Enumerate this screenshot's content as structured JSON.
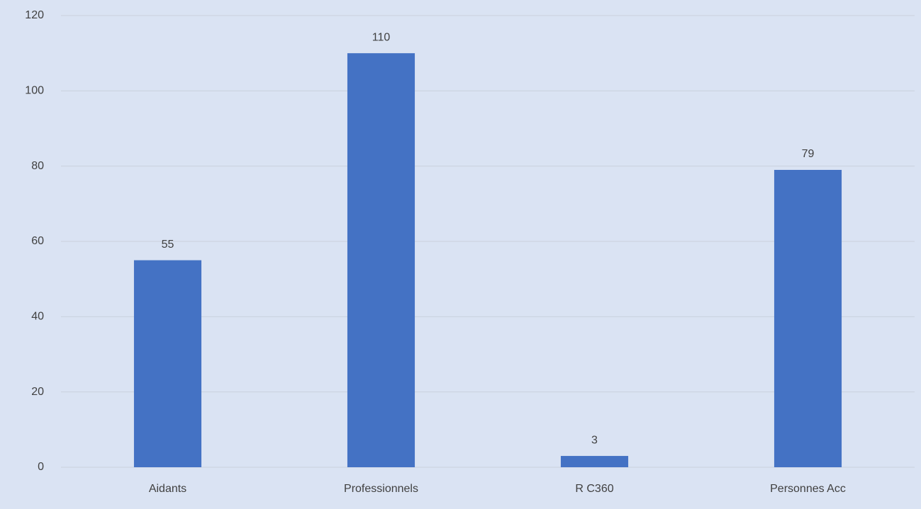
{
  "chart_data": {
    "type": "bar",
    "categories": [
      "Aidants",
      "Professionnels",
      "R C360",
      "Personnes Acc"
    ],
    "values": [
      55,
      110,
      3,
      79
    ],
    "color": "#4472c4",
    "ylim": [
      0,
      120
    ],
    "yticks": [
      0,
      20,
      40,
      60,
      80,
      100,
      120
    ],
    "grid": true
  }
}
